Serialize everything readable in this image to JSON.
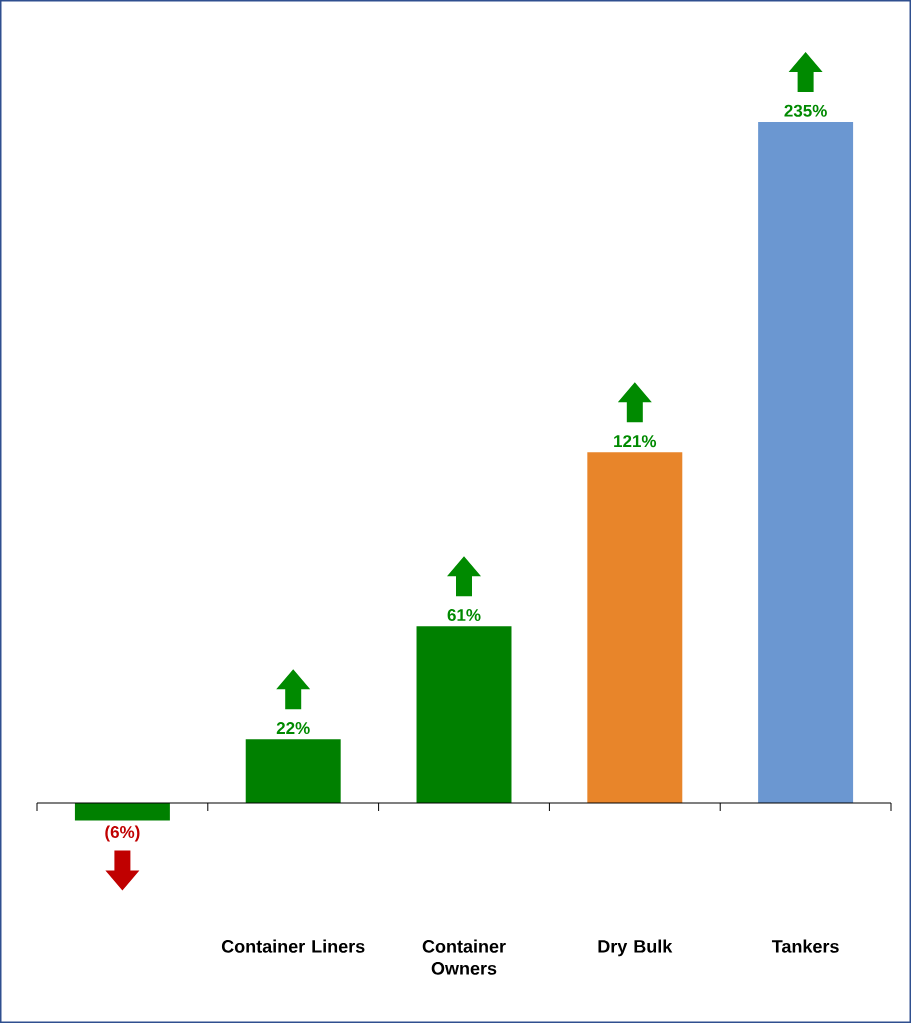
{
  "chart_data": {
    "type": "bar",
    "categories": [
      null,
      "Container Liners",
      "Container Owners",
      "Dry Bulk",
      "Tankers"
    ],
    "values": [
      -6,
      22,
      61,
      121,
      235
    ],
    "colors": [
      "#008000",
      "#008000",
      "#008000",
      "#e8852a",
      "#6b97d1"
    ],
    "value_labels": [
      "(6%)",
      "22%",
      "61%",
      "121%",
      "235%"
    ]
  }
}
